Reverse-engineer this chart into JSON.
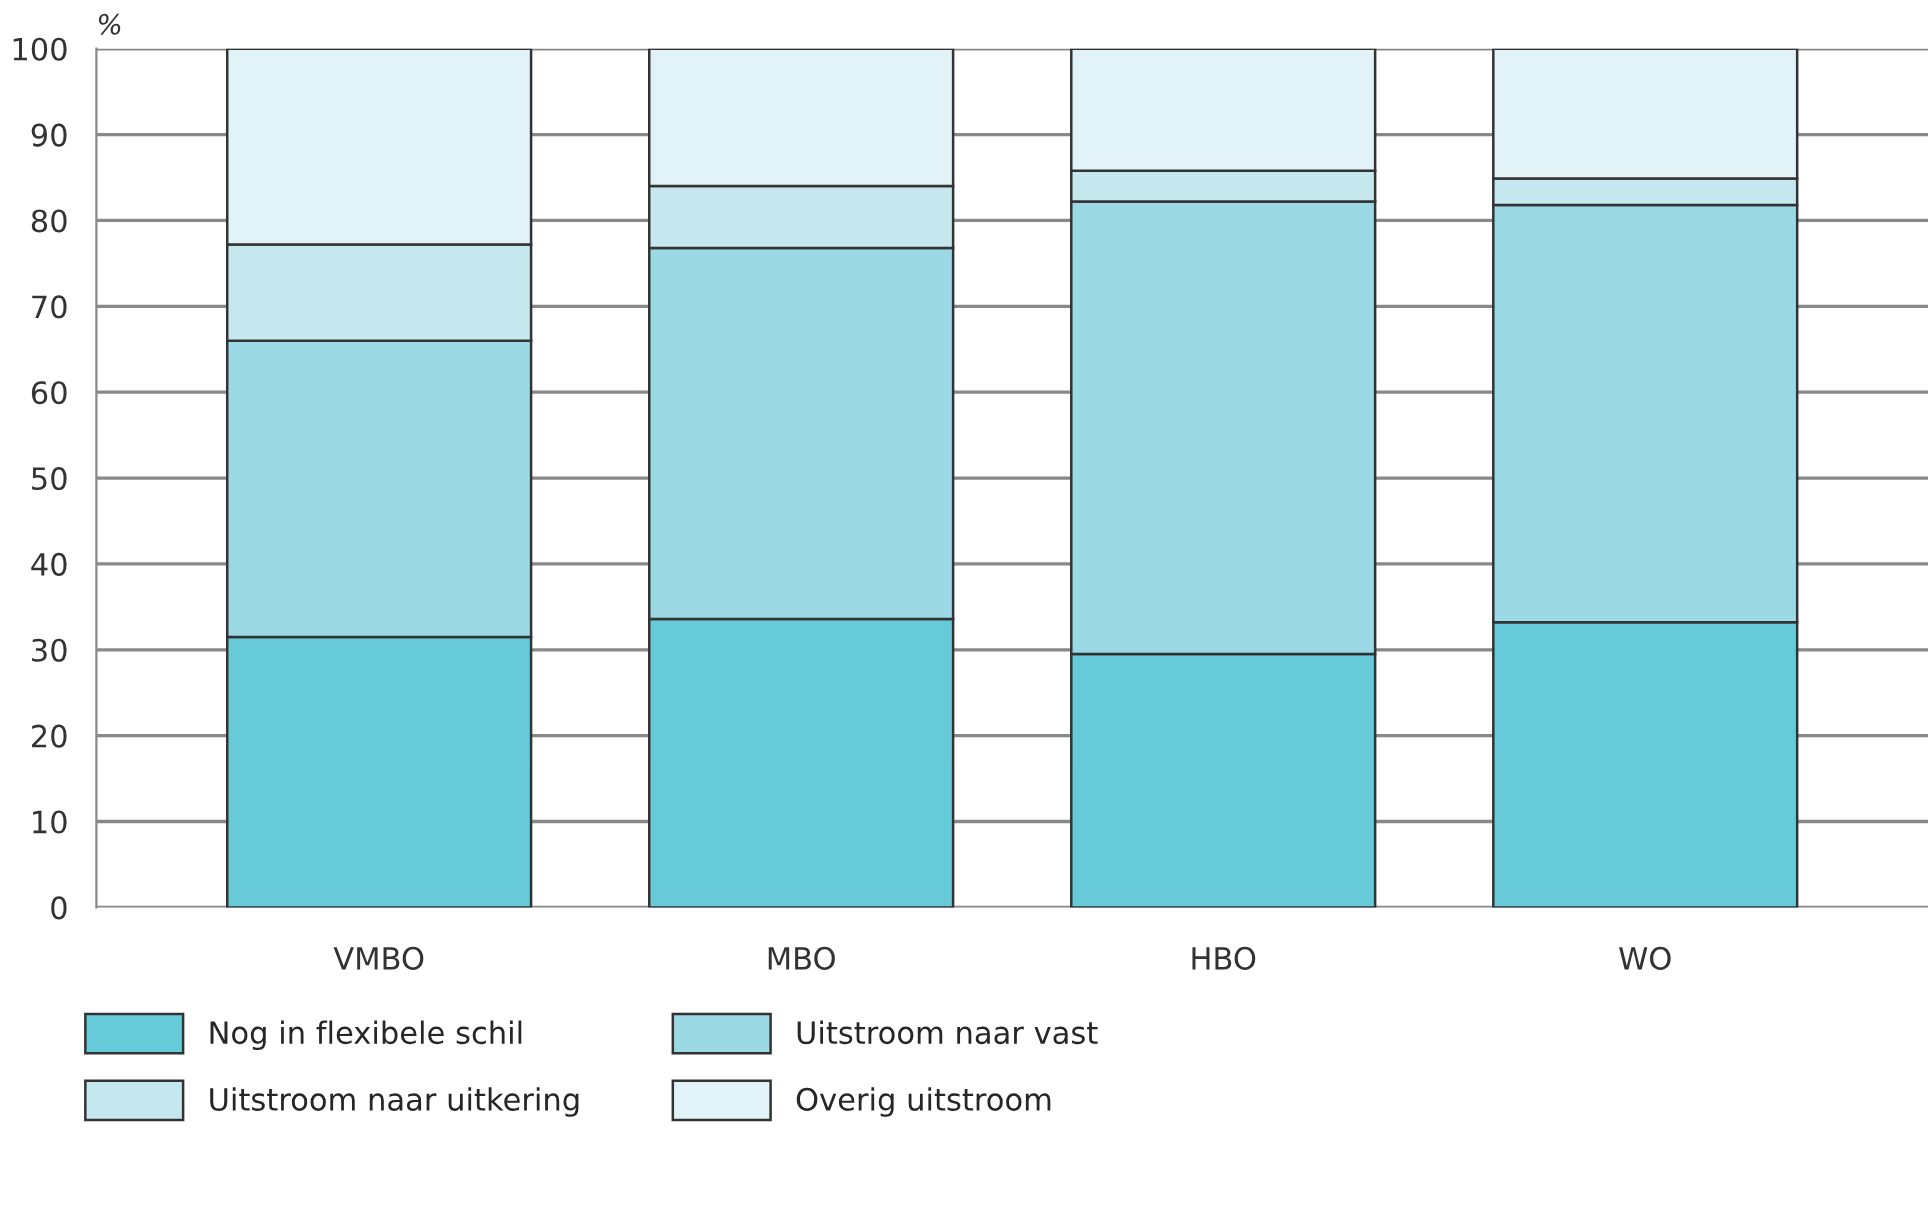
{
  "chart_data": {
    "type": "bar",
    "stacked": true,
    "ylabel": "%",
    "categories": [
      "VMBO",
      "MBO",
      "HBO",
      "WO"
    ],
    "series": [
      {
        "name": "Nog in flexibele schil",
        "color": "#66cad9",
        "values": [
          31.5,
          33.6,
          29.5,
          33.2
        ]
      },
      {
        "name": "Uitstroom naar vast",
        "color": "#9bd9e5",
        "values": [
          34.5,
          43.2,
          52.7,
          48.6
        ]
      },
      {
        "name": "Uitstroom naar uitkering",
        "color": "#c5e8ef",
        "values": [
          11.2,
          7.2,
          3.6,
          3.1
        ]
      },
      {
        "name": "Overig uitstroom",
        "color": "#e1f3f6",
        "values": [
          22.8,
          16.0,
          14.2,
          15.1
        ]
      }
    ],
    "ylim": [
      0,
      100
    ],
    "yticks": [
      0,
      10,
      20,
      30,
      40,
      50,
      60,
      70,
      80,
      90,
      100
    ],
    "grid": "y",
    "legend": "bottom"
  }
}
